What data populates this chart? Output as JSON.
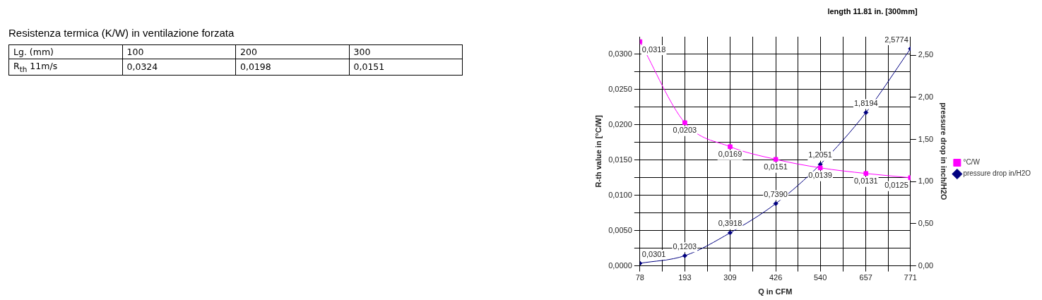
{
  "chart_data": [
    {
      "type": "other",
      "title": "Resistenza termica (K/W) in ventilazione forzata",
      "annotations": [
        "Lg. (mm)",
        "100",
        "200",
        "300",
        "R$_{th}$ 11m/s",
        "0,0324",
        "0,0198",
        "0,0151"
      ]
    },
    {
      "type": "line",
      "title": "length 11.81 in. [300mm]",
      "xlabel": "Q in CFM",
      "ylabel": "R-th value in [°C/W]",
      "y2label": "pressure drop in inch/H2O",
      "x": [
        78,
        193,
        309,
        426,
        540,
        657,
        771
      ],
      "xlim": [
        78,
        771
      ],
      "xticks": [
        78,
        {
          "value": 135.5,
          "label": null
        },
        193,
        {
          "value": 251,
          "label": null
        },
        309,
        {
          "value": 367.5,
          "label": null
        },
        426,
        {
          "value": 483,
          "label": null
        },
        540,
        {
          "value": 598.5,
          "label": null
        },
        657,
        {
          "value": 714,
          "label": null
        },
        771
      ],
      "ylim": [
        0,
        0.0325
      ],
      "yticks": [
        {
          "value": 0,
          "label": "0,0000"
        },
        {
          "value": 0.0025,
          "label": null
        },
        {
          "value": 0.005,
          "label": "0,0050"
        },
        {
          "value": 0.0075,
          "label": null
        },
        {
          "value": 0.01,
          "label": "0,0100"
        },
        {
          "value": 0.0125,
          "label": null
        },
        {
          "value": 0.015,
          "label": "0,0150"
        },
        {
          "value": 0.0175,
          "label": null
        },
        {
          "value": 0.02,
          "label": "0,0200"
        },
        {
          "value": 0.0225,
          "label": null
        },
        {
          "value": 0.025,
          "label": "0,0250"
        },
        {
          "value": 0.0275,
          "label": null
        },
        {
          "value": 0.03,
          "label": "0,0300"
        }
      ],
      "y2lim": [
        0,
        2.72
      ],
      "y2ticks": [
        {
          "value": 0,
          "label": "0,00"
        },
        {
          "value": 0.5,
          "label": "0,50"
        },
        {
          "value": 1,
          "label": "1,00"
        },
        {
          "value": 1.5,
          "label": "1,50"
        },
        {
          "value": 2,
          "label": "2,00"
        },
        {
          "value": 2.5,
          "label": "2,50"
        }
      ],
      "grid": true,
      "legend": "right",
      "series": [
        {
          "name": "°C/W",
          "color": "#ff00ff",
          "marker": "square",
          "values": [
            0.0318,
            0.0203,
            0.0169,
            0.0151,
            0.0139,
            0.0131,
            0.0125
          ],
          "value_labels": [
            "0,0318",
            "0,0203",
            "0,0169",
            "0,0151",
            "0,0139",
            "0,0131",
            "0,0125"
          ]
        },
        {
          "name": "pressure drop in/H2O",
          "color": "#000080",
          "marker": "diamond",
          "axis": "y2",
          "values": [
            0.0301,
            0.1203,
            0.3918,
            0.739,
            1.2051,
            1.8194,
            2.5774
          ],
          "value_labels": [
            "0,0301",
            "0,1203",
            "0,3918",
            "0,7390",
            "1,2051",
            "1,8194",
            "2,5774"
          ]
        }
      ]
    }
  ]
}
